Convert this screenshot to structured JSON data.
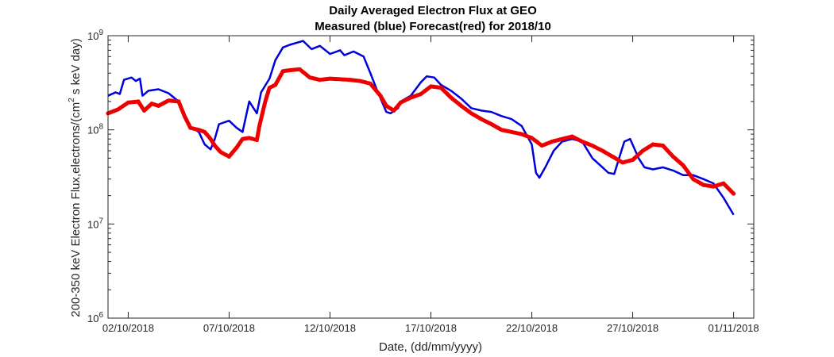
{
  "chart_data": {
    "type": "line",
    "title": "Daily Averaged Electron Flux at GEO",
    "subtitle": "Measured (blue) Forecast(red) for 2018/10",
    "xlabel": "Date, (dd/mm/yyyy)",
    "ylabel_main": "200-350 keV Electron Flux,electrons/(cm",
    "ylabel_sup": "2",
    "ylabel_tail": " s keV day)",
    "y_scale": "log",
    "xlim": [
      "2018-10-01",
      "2018-11-02"
    ],
    "ylim": [
      1000000,
      1000000000
    ],
    "y_ticks": [
      {
        "value": 1000000,
        "base": "10",
        "exp": "6"
      },
      {
        "value": 10000000,
        "base": "10",
        "exp": "7"
      },
      {
        "value": 100000000,
        "base": "10",
        "exp": "8"
      },
      {
        "value": 1000000000,
        "base": "10",
        "exp": "9"
      }
    ],
    "x_ticks": [
      {
        "date": "2018-10-02",
        "label": "02/10/2018"
      },
      {
        "date": "2018-10-07",
        "label": "07/10/2018"
      },
      {
        "date": "2018-10-12",
        "label": "12/10/2018"
      },
      {
        "date": "2018-10-17",
        "label": "17/10/2018"
      },
      {
        "date": "2018-10-22",
        "label": "22/10/2018"
      },
      {
        "date": "2018-10-27",
        "label": "27/10/2018"
      },
      {
        "date": "2018-11-01",
        "label": "01/11/2018"
      }
    ],
    "grid": false,
    "series": [
      {
        "color": "#0000dd",
        "style": "line",
        "points": [
          [
            "2018-10-01T00:00",
            230000000
          ],
          [
            "2018-10-01T09:00",
            250000000
          ],
          [
            "2018-10-01T14:00",
            240000000
          ],
          [
            "2018-10-01T19:00",
            340000000
          ],
          [
            "2018-10-02T04:00",
            360000000
          ],
          [
            "2018-10-02T09:00",
            330000000
          ],
          [
            "2018-10-02T14:00",
            350000000
          ],
          [
            "2018-10-02T17:00",
            230000000
          ],
          [
            "2018-10-03T00:00",
            260000000
          ],
          [
            "2018-10-03T12:00",
            270000000
          ],
          [
            "2018-10-04T00:00",
            245000000
          ],
          [
            "2018-10-04T12:00",
            200000000
          ],
          [
            "2018-10-05T00:00",
            110000000
          ],
          [
            "2018-10-05T12:00",
            95000000
          ],
          [
            "2018-10-05T19:00",
            70000000
          ],
          [
            "2018-10-06T02:00",
            62000000
          ],
          [
            "2018-10-06T07:00",
            80000000
          ],
          [
            "2018-10-06T12:00",
            115000000
          ],
          [
            "2018-10-07T00:00",
            125000000
          ],
          [
            "2018-10-07T09:00",
            105000000
          ],
          [
            "2018-10-07T16:00",
            95000000
          ],
          [
            "2018-10-08T00:00",
            200000000
          ],
          [
            "2018-10-08T09:00",
            150000000
          ],
          [
            "2018-10-08T14:00",
            250000000
          ],
          [
            "2018-10-09T00:00",
            350000000
          ],
          [
            "2018-10-09T07:00",
            550000000
          ],
          [
            "2018-10-09T16:00",
            750000000
          ],
          [
            "2018-10-10T00:00",
            800000000
          ],
          [
            "2018-10-10T16:00",
            880000000
          ],
          [
            "2018-10-11T02:00",
            720000000
          ],
          [
            "2018-10-11T12:00",
            780000000
          ],
          [
            "2018-10-12T00:00",
            640000000
          ],
          [
            "2018-10-12T12:00",
            700000000
          ],
          [
            "2018-10-12T17:00",
            620000000
          ],
          [
            "2018-10-13T04:00",
            680000000
          ],
          [
            "2018-10-13T16:00",
            600000000
          ],
          [
            "2018-10-14T00:00",
            400000000
          ],
          [
            "2018-10-14T09:00",
            250000000
          ],
          [
            "2018-10-14T19:00",
            155000000
          ],
          [
            "2018-10-15T00:00",
            150000000
          ],
          [
            "2018-10-15T09:00",
            170000000
          ],
          [
            "2018-10-15T12:00",
            200000000
          ],
          [
            "2018-10-16T00:00",
            230000000
          ],
          [
            "2018-10-16T12:00",
            320000000
          ],
          [
            "2018-10-16T19:00",
            370000000
          ],
          [
            "2018-10-17T04:00",
            360000000
          ],
          [
            "2018-10-17T12:00",
            300000000
          ],
          [
            "2018-10-18T00:00",
            260000000
          ],
          [
            "2018-10-18T12:00",
            215000000
          ],
          [
            "2018-10-19T00:00",
            170000000
          ],
          [
            "2018-10-19T12:00",
            160000000
          ],
          [
            "2018-10-20T00:00",
            155000000
          ],
          [
            "2018-10-20T12:00",
            140000000
          ],
          [
            "2018-10-21T00:00",
            130000000
          ],
          [
            "2018-10-21T12:00",
            110000000
          ],
          [
            "2018-10-22T00:00",
            70000000
          ],
          [
            "2018-10-22T05:00",
            35000000
          ],
          [
            "2018-10-22T09:00",
            31000000
          ],
          [
            "2018-10-22T16:00",
            40000000
          ],
          [
            "2018-10-23T02:00",
            60000000
          ],
          [
            "2018-10-23T12:00",
            75000000
          ],
          [
            "2018-10-24T00:00",
            80000000
          ],
          [
            "2018-10-24T12:00",
            75000000
          ],
          [
            "2018-10-25T00:00",
            50000000
          ],
          [
            "2018-10-25T12:00",
            40000000
          ],
          [
            "2018-10-25T19:00",
            35000000
          ],
          [
            "2018-10-26T02:00",
            34000000
          ],
          [
            "2018-10-26T14:00",
            75000000
          ],
          [
            "2018-10-26T21:00",
            80000000
          ],
          [
            "2018-10-27T07:00",
            50000000
          ],
          [
            "2018-10-27T14:00",
            40000000
          ],
          [
            "2018-10-28T00:00",
            38000000
          ],
          [
            "2018-10-28T12:00",
            40000000
          ],
          [
            "2018-10-29T00:00",
            37000000
          ],
          [
            "2018-10-29T12:00",
            33000000
          ],
          [
            "2018-10-30T00:00",
            33000000
          ],
          [
            "2018-10-30T12:00",
            30000000
          ],
          [
            "2018-10-31T00:00",
            27000000
          ],
          [
            "2018-10-31T12:00",
            19000000
          ],
          [
            "2018-11-01T00:00",
            12500000
          ]
        ]
      },
      {
        "color": "#ee0000",
        "style": "dots",
        "points": [
          [
            "2018-10-01T00:00",
            150000000
          ],
          [
            "2018-10-01T12:00",
            165000000
          ],
          [
            "2018-10-02T00:00",
            195000000
          ],
          [
            "2018-10-02T12:00",
            200000000
          ],
          [
            "2018-10-02T19:00",
            160000000
          ],
          [
            "2018-10-03T04:00",
            190000000
          ],
          [
            "2018-10-03T12:00",
            180000000
          ],
          [
            "2018-10-04T00:00",
            205000000
          ],
          [
            "2018-10-04T12:00",
            200000000
          ],
          [
            "2018-10-04T19:00",
            140000000
          ],
          [
            "2018-10-05T02:00",
            105000000
          ],
          [
            "2018-10-05T12:00",
            100000000
          ],
          [
            "2018-10-05T19:00",
            95000000
          ],
          [
            "2018-10-06T02:00",
            80000000
          ],
          [
            "2018-10-06T07:00",
            68000000
          ],
          [
            "2018-10-06T14:00",
            58000000
          ],
          [
            "2018-10-07T00:00",
            52000000
          ],
          [
            "2018-10-07T09:00",
            65000000
          ],
          [
            "2018-10-07T16:00",
            80000000
          ],
          [
            "2018-10-08T00:00",
            82000000
          ],
          [
            "2018-10-08T09:00",
            78000000
          ],
          [
            "2018-10-08T12:00",
            110000000
          ],
          [
            "2018-10-08T19:00",
            200000000
          ],
          [
            "2018-10-09T00:00",
            280000000
          ],
          [
            "2018-10-09T07:00",
            300000000
          ],
          [
            "2018-10-09T16:00",
            420000000
          ],
          [
            "2018-10-10T00:00",
            430000000
          ],
          [
            "2018-10-10T12:00",
            440000000
          ],
          [
            "2018-10-11T00:00",
            360000000
          ],
          [
            "2018-10-11T12:00",
            340000000
          ],
          [
            "2018-10-12T00:00",
            350000000
          ],
          [
            "2018-10-12T12:00",
            345000000
          ],
          [
            "2018-10-13T00:00",
            340000000
          ],
          [
            "2018-10-13T12:00",
            330000000
          ],
          [
            "2018-10-14T00:00",
            310000000
          ],
          [
            "2018-10-14T12:00",
            230000000
          ],
          [
            "2018-10-14T19:00",
            180000000
          ],
          [
            "2018-10-15T04:00",
            160000000
          ],
          [
            "2018-10-15T12:00",
            195000000
          ],
          [
            "2018-10-16T00:00",
            220000000
          ],
          [
            "2018-10-16T12:00",
            240000000
          ],
          [
            "2018-10-17T00:00",
            290000000
          ],
          [
            "2018-10-17T12:00",
            280000000
          ],
          [
            "2018-10-18T00:00",
            220000000
          ],
          [
            "2018-10-18T12:00",
            180000000
          ],
          [
            "2018-10-19T00:00",
            150000000
          ],
          [
            "2018-10-19T12:00",
            130000000
          ],
          [
            "2018-10-20T00:00",
            115000000
          ],
          [
            "2018-10-20T12:00",
            100000000
          ],
          [
            "2018-10-21T00:00",
            95000000
          ],
          [
            "2018-10-21T12:00",
            90000000
          ],
          [
            "2018-10-22T00:00",
            82000000
          ],
          [
            "2018-10-22T12:00",
            68000000
          ],
          [
            "2018-10-23T00:00",
            75000000
          ],
          [
            "2018-10-23T12:00",
            80000000
          ],
          [
            "2018-10-24T00:00",
            85000000
          ],
          [
            "2018-10-24T12:00",
            75000000
          ],
          [
            "2018-10-25T00:00",
            68000000
          ],
          [
            "2018-10-25T12:00",
            60000000
          ],
          [
            "2018-10-26T00:00",
            52000000
          ],
          [
            "2018-10-26T12:00",
            45000000
          ],
          [
            "2018-10-27T00:00",
            48000000
          ],
          [
            "2018-10-27T12:00",
            60000000
          ],
          [
            "2018-10-28T00:00",
            70000000
          ],
          [
            "2018-10-28T12:00",
            68000000
          ],
          [
            "2018-10-29T00:00",
            52000000
          ],
          [
            "2018-10-29T12:00",
            42000000
          ],
          [
            "2018-10-30T00:00",
            30000000
          ],
          [
            "2018-10-30T12:00",
            26000000
          ],
          [
            "2018-10-31T00:00",
            25000000
          ],
          [
            "2018-10-31T12:00",
            27000000
          ],
          [
            "2018-11-01T00:00",
            21000000
          ]
        ]
      }
    ]
  }
}
